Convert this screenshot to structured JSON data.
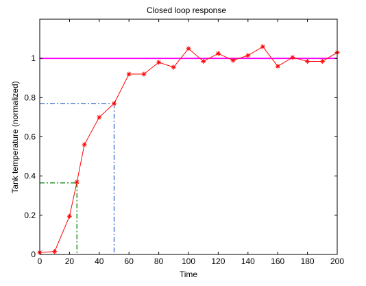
{
  "chart_data": {
    "type": "line",
    "title": "Closed loop response",
    "xlabel": "Time",
    "ylabel": "Tank temperature (normalized)",
    "xlim": [
      0,
      200
    ],
    "ylim": [
      0,
      1.2
    ],
    "xticks": [
      0,
      20,
      40,
      60,
      80,
      100,
      120,
      140,
      160,
      180,
      200
    ],
    "yticks": [
      0,
      0.2,
      0.4,
      0.6,
      0.8,
      1
    ],
    "ytick_labels": [
      "0",
      "0.2",
      "0.4",
      "0.6",
      "0.8",
      "1"
    ],
    "grid": false,
    "legend": "none",
    "series": [
      {
        "style": "solid-line-with-asterisk-markers",
        "color": "#ff0000",
        "x": [
          0,
          10,
          20,
          25,
          30,
          40,
          50,
          60,
          70,
          80,
          90,
          100,
          110,
          120,
          130,
          140,
          150,
          160,
          170,
          180,
          190,
          200
        ],
        "y": [
          0.01,
          0.015,
          0.195,
          0.37,
          0.56,
          0.7,
          0.77,
          0.92,
          0.92,
          0.98,
          0.955,
          1.05,
          0.985,
          1.025,
          0.99,
          1.015,
          1.06,
          0.96,
          1.005,
          0.985,
          0.985,
          1.03
        ]
      }
    ],
    "reference_lines": [
      {
        "style": "solid",
        "color": "#ff00ff",
        "orientation": "horizontal",
        "y": 1.0,
        "x_range": [
          0,
          200
        ]
      }
    ],
    "marker_guides": [
      {
        "style": "dash-dot",
        "color": "#008000",
        "x": 25,
        "y": 0.365
      },
      {
        "style": "dash-dot",
        "color": "#3366cc",
        "x": 50,
        "y": 0.77
      }
    ]
  }
}
